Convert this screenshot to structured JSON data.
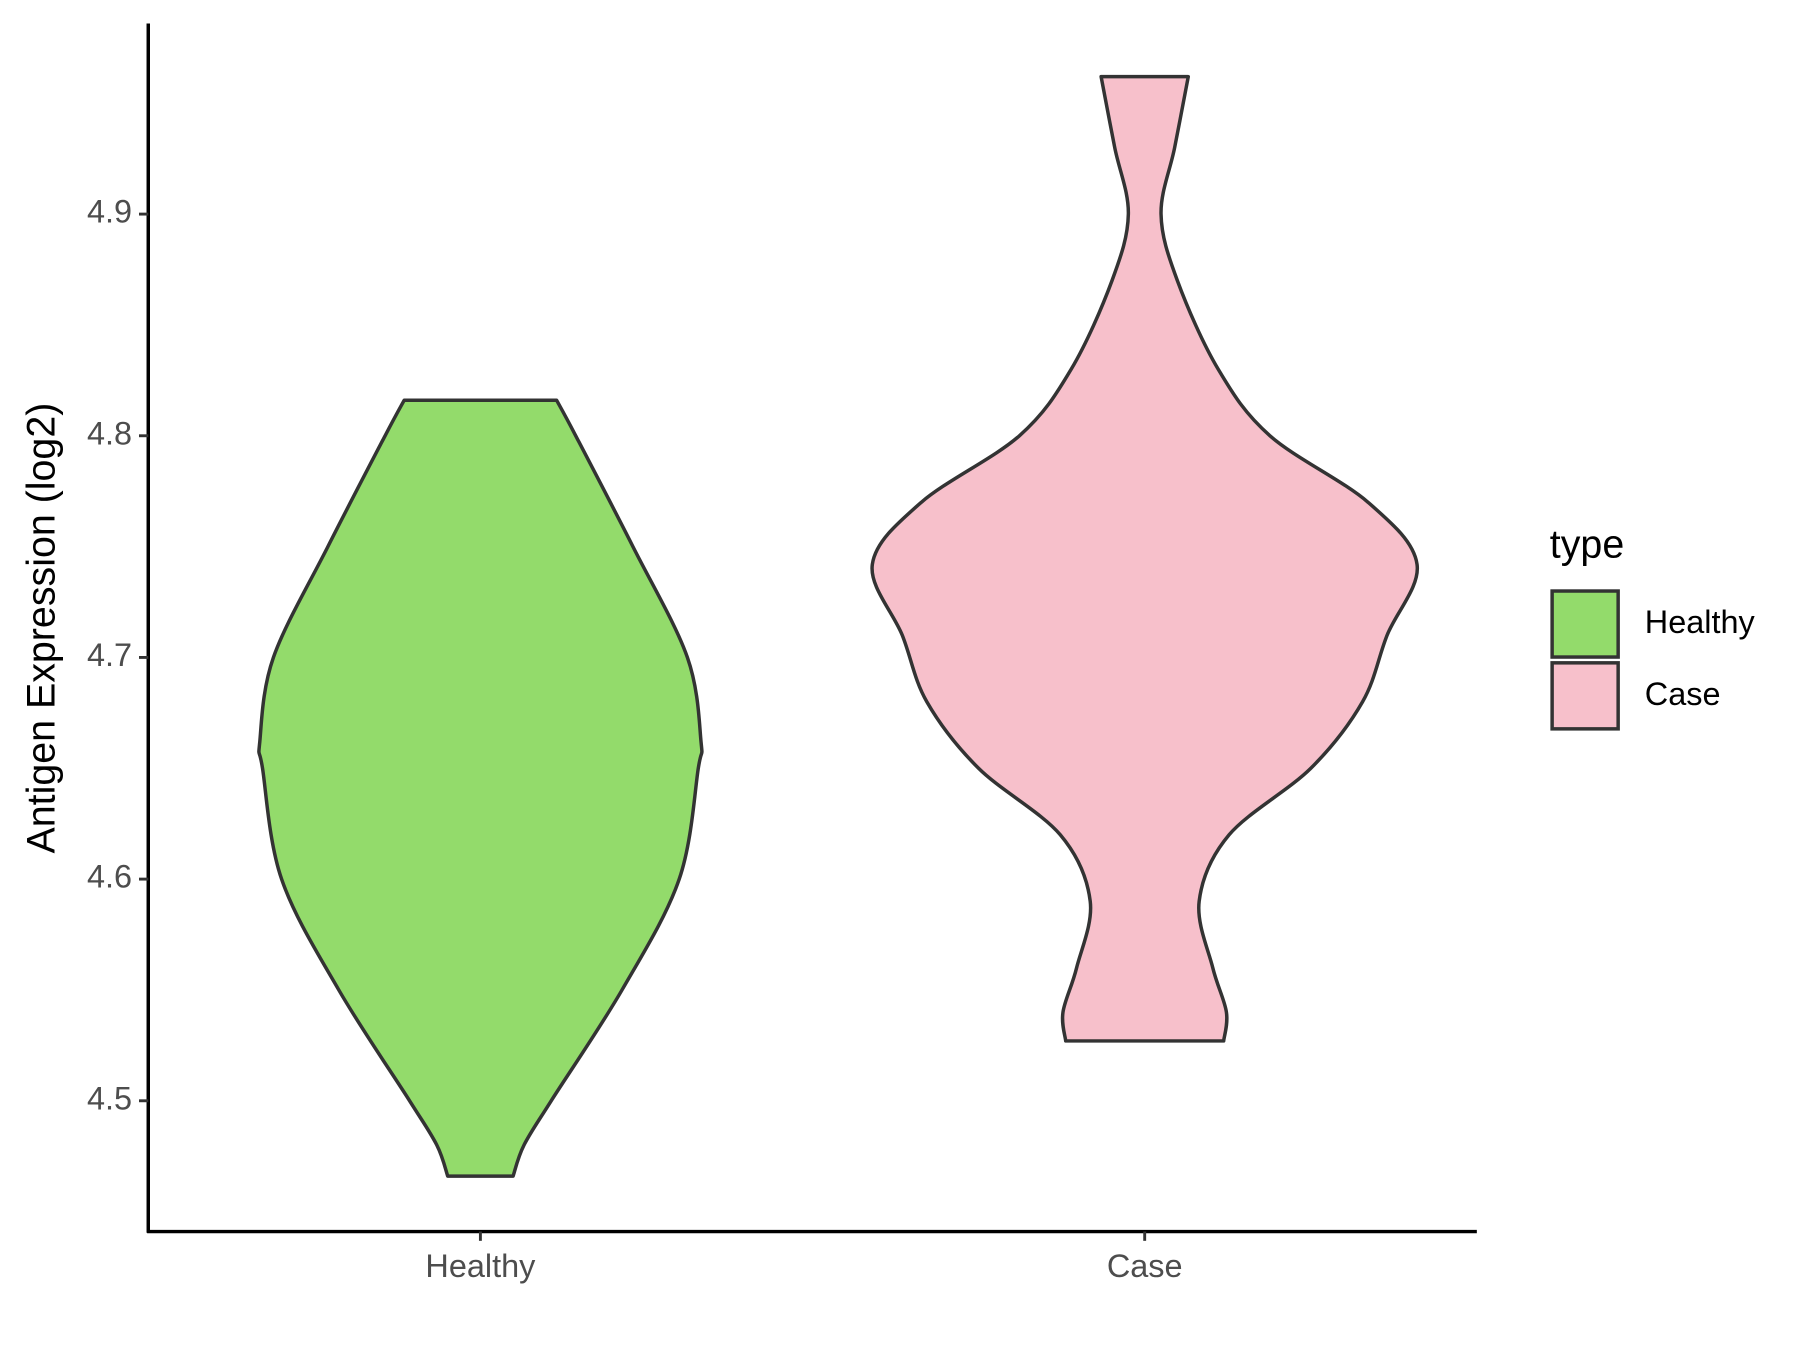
{
  "chart_data": {
    "type": "violin",
    "ylabel": "Antigen Expression (log2)",
    "categories": [
      "Healthy",
      "Case"
    ],
    "ylim": [
      4.441,
      4.986
    ],
    "yticks": [
      4.5,
      4.6,
      4.7,
      4.8,
      4.9
    ],
    "legend_title": "type",
    "legend": "right",
    "series": [
      {
        "name": "Healthy",
        "color": "#93DB6B",
        "y": [
          4.466,
          4.48,
          4.5,
          4.55,
          4.6,
          4.65,
          4.662,
          4.7,
          4.75,
          4.8,
          4.816
        ],
        "density": [
          0.12,
          0.16,
          0.26,
          0.52,
          0.73,
          0.8,
          0.81,
          0.76,
          0.56,
          0.35,
          0.28
        ]
      },
      {
        "name": "Case",
        "color": "#F7C0CB",
        "y": [
          4.527,
          4.54,
          4.56,
          4.59,
          4.62,
          4.65,
          4.68,
          4.71,
          4.742,
          4.77,
          4.8,
          4.83,
          4.87,
          4.9,
          4.93,
          4.962
        ],
        "density": [
          0.29,
          0.3,
          0.25,
          0.2,
          0.31,
          0.61,
          0.8,
          0.89,
          1.0,
          0.82,
          0.46,
          0.27,
          0.12,
          0.06,
          0.11,
          0.16
        ]
      }
    ]
  }
}
